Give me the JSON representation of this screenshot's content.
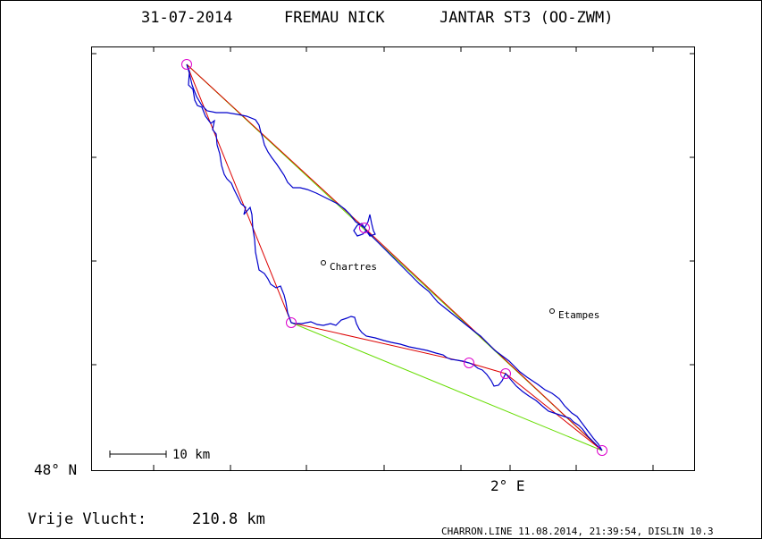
{
  "header": {
    "date": "31-07-2014",
    "pilot": "FREMAU NICK",
    "glider": "JANTAR ST3 (OO-ZWM)"
  },
  "axes": {
    "lat_label": "48° N",
    "lon_label": "2° E"
  },
  "scale_bar": {
    "label": "10 km"
  },
  "places": [
    {
      "name": "Chartres"
    },
    {
      "name": "Etampes"
    }
  ],
  "summary": {
    "label": "Vrije Vlucht:",
    "value": "210.8 km"
  },
  "footer": {
    "credit": "CHARRON.LINE 11.08.2014, 21:39:54, DISLIN 10.3"
  },
  "colors": {
    "track": "#0000cc",
    "task_line": "#dd0000",
    "closing_line": "#66dd00",
    "turnpoint": "#dd00cc",
    "frame": "#000000"
  }
}
